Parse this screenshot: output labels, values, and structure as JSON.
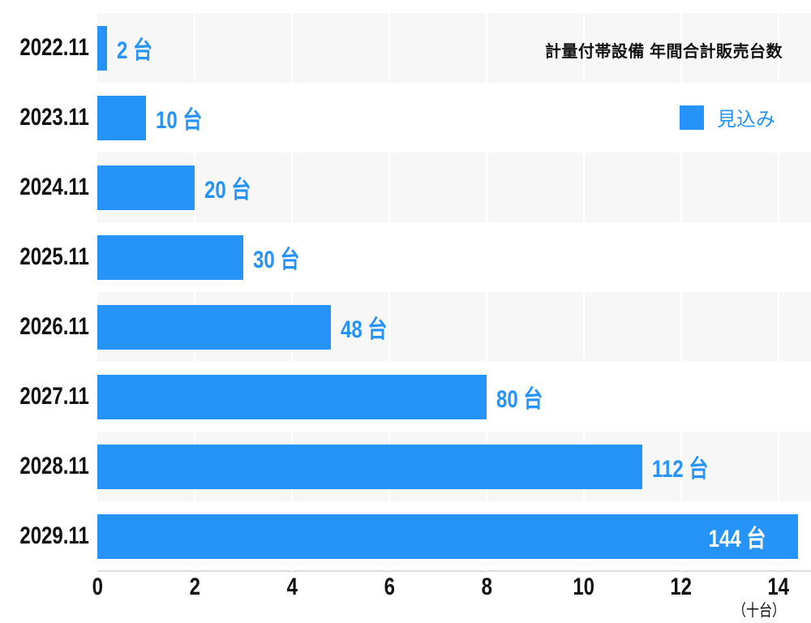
{
  "header": {
    "title": "計量付帯設備 年間合計販売台数"
  },
  "legend": {
    "series_label": "見込み"
  },
  "axis": {
    "unit_label": "（十台）"
  },
  "colors": {
    "bar": "#2593f7",
    "value_text": "#2593f7",
    "inside_value_text": "#ffffff",
    "stripe": "#f7f7f7",
    "gridline": "#ffffff",
    "axis_line": "#dcdcdc",
    "text": "#111111",
    "background": "#ffffff"
  },
  "chart_data": {
    "type": "bar",
    "orientation": "horizontal",
    "title": "計量付帯設備 年間合計販売台数",
    "categories": [
      "2022.11",
      "2023.11",
      "2024.11",
      "2025.11",
      "2026.11",
      "2027.11",
      "2028.11",
      "2029.11"
    ],
    "series": [
      {
        "name": "見込み",
        "values": [
          2,
          10,
          20,
          30,
          48,
          80,
          112,
          144
        ]
      }
    ],
    "value_labels": [
      "2 台",
      "10 台",
      "20 台",
      "30 台",
      "48 台",
      "80 台",
      "112 台",
      "144 台"
    ],
    "value_unit": "台",
    "x_ticks": [
      0,
      2,
      4,
      6,
      8,
      10,
      12,
      14
    ],
    "xlabel": "（十台）",
    "xlim": [
      0,
      14.67
    ],
    "legend_position": "top-right",
    "grid": "vertical",
    "row_striping": "alternating"
  }
}
